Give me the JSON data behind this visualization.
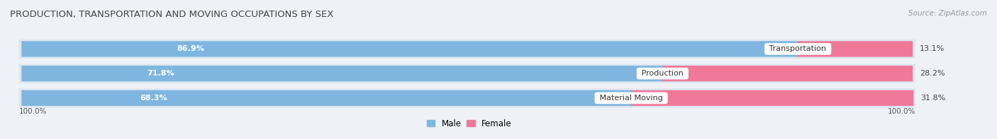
{
  "title": "PRODUCTION, TRANSPORTATION AND MOVING OCCUPATIONS BY SEX",
  "source": "Source: ZipAtlas.com",
  "categories": [
    "Transportation",
    "Production",
    "Material Moving"
  ],
  "male_values": [
    86.9,
    71.8,
    68.3
  ],
  "female_values": [
    13.1,
    28.2,
    31.8
  ],
  "male_color": "#7eb6e0",
  "female_color": "#f07898",
  "male_label": "Male",
  "female_label": "Female",
  "bar_height": 0.62,
  "row_bg_color": "#dce6f0",
  "fig_bg_color": "#eef2f7",
  "title_fontsize": 9.5,
  "bar_fontsize": 8.0,
  "cat_fontsize": 8.0,
  "axis_label": "100.0%"
}
